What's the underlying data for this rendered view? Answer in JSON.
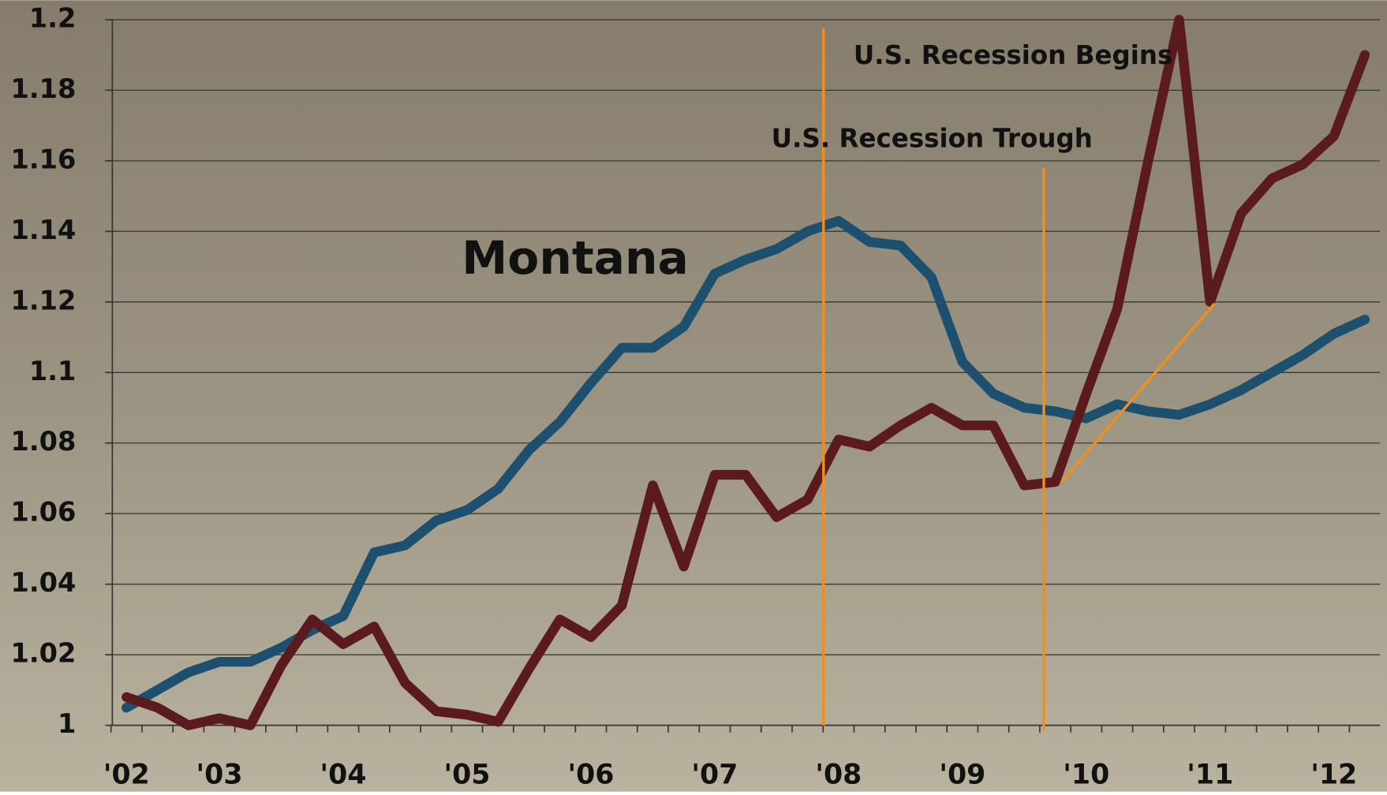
{
  "chart_data": {
    "type": "line",
    "categories": [
      "'02",
      null,
      null,
      "'03",
      null,
      null,
      null,
      "'04",
      null,
      null,
      null,
      "'05",
      null,
      null,
      null,
      "'06",
      null,
      null,
      null,
      "'07",
      null,
      null,
      null,
      "'08",
      null,
      null,
      null,
      "'09",
      null,
      null,
      null,
      "'10",
      null,
      null,
      null,
      "'11",
      null,
      null,
      null,
      "'12",
      null
    ],
    "series": [
      {
        "name": "Montana",
        "color": "#1d4f6e",
        "values": [
          1.005,
          1.01,
          1.015,
          1.018,
          1.018,
          1.022,
          1.027,
          1.031,
          1.049,
          1.051,
          1.058,
          1.061,
          1.067,
          1.078,
          1.086,
          1.097,
          1.107,
          1.107,
          1.113,
          1.128,
          1.132,
          1.135,
          1.14,
          1.143,
          1.137,
          1.136,
          1.127,
          1.103,
          1.094,
          1.09,
          1.089,
          1.087,
          1.091,
          1.089,
          1.088,
          1.091,
          1.095,
          1.1,
          1.105,
          1.111,
          1.115
        ]
      },
      {
        "color": "#5a1a1e",
        "values": [
          1.008,
          1.005,
          1.0,
          1.002,
          1.0,
          1.017,
          1.03,
          1.023,
          1.028,
          1.012,
          1.004,
          1.003,
          1.001,
          1.016,
          1.03,
          1.025,
          1.034,
          1.068,
          1.045,
          1.071,
          1.071,
          1.059,
          1.064,
          1.081,
          1.079,
          1.085,
          1.09,
          1.085,
          1.085,
          1.068,
          1.069,
          1.094,
          1.118,
          1.16,
          1.2,
          1.12,
          1.145,
          1.155,
          1.159,
          1.167,
          1.19
        ]
      }
    ],
    "ylim": [
      1,
      1.2
    ],
    "yticks": [
      1,
      1.02,
      1.04,
      1.06,
      1.08,
      1.1,
      1.12,
      1.14,
      1.16,
      1.18,
      1.2
    ],
    "grid": true,
    "annotations": [
      "U.S. Recession Begins",
      "U.S. Recession Trough"
    ]
  }
}
